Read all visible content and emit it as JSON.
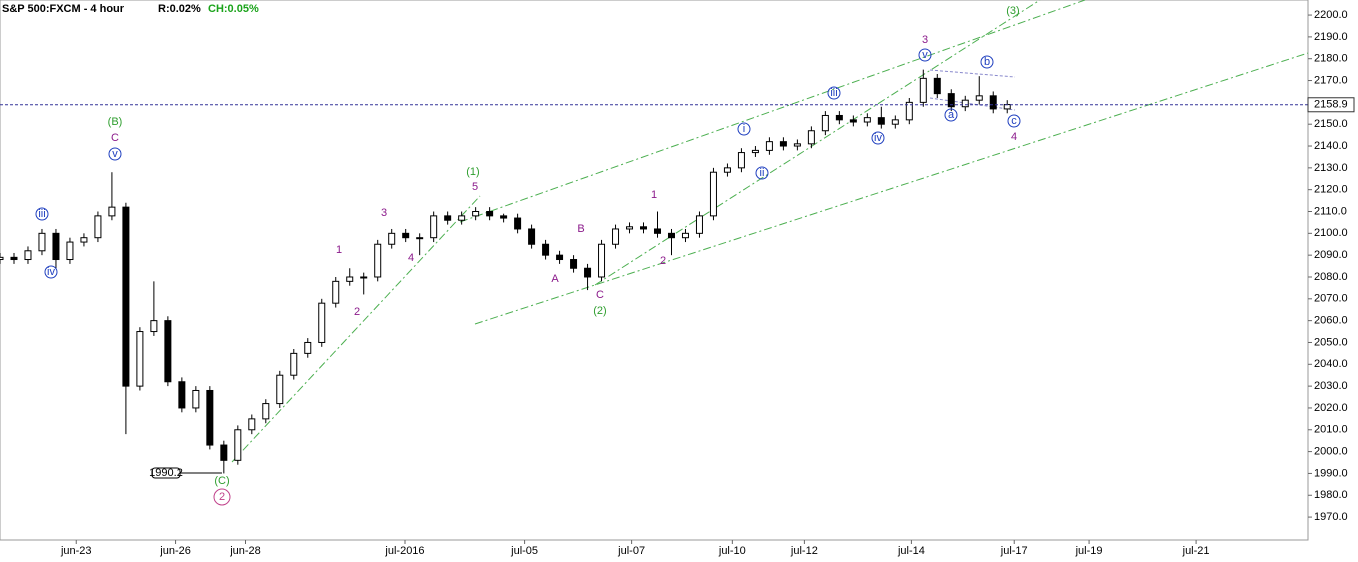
{
  "header": {
    "title": "S&P 500:FXCM - 4 hour",
    "range": "R:0.02%",
    "change": "CH:0.05%"
  },
  "chart_data": {
    "type": "candlestick",
    "candles": [
      [
        0,
        2088,
        2091,
        2086,
        2089
      ],
      [
        2,
        2089,
        2091,
        2086,
        2088
      ],
      [
        4,
        2088,
        2094,
        2086,
        2092
      ],
      [
        6,
        2092,
        2102,
        2090,
        2100
      ],
      [
        8,
        2100,
        2102,
        2084,
        2088
      ],
      [
        10,
        2088,
        2098,
        2086,
        2096
      ],
      [
        12,
        2096,
        2100,
        2094,
        2098
      ],
      [
        14,
        2098,
        2110,
        2096,
        2108
      ],
      [
        16,
        2108,
        2128,
        2106,
        2112
      ],
      [
        18,
        2112,
        2114,
        2008,
        2030
      ],
      [
        20,
        2030,
        2057,
        2028,
        2055
      ],
      [
        22,
        2055,
        2078,
        2053,
        2060
      ],
      [
        24,
        2060,
        2062,
        2030,
        2032
      ],
      [
        26,
        2032,
        2034,
        2018,
        2020
      ],
      [
        28,
        2020,
        2030,
        2018,
        2028
      ],
      [
        30,
        2028,
        2030,
        2001,
        2003
      ],
      [
        32,
        2003,
        2005,
        1990,
        1996
      ],
      [
        34,
        1996,
        2012,
        1994,
        2010
      ],
      [
        36,
        2010,
        2017,
        2008,
        2015
      ],
      [
        38,
        2015,
        2024,
        2013,
        2022
      ],
      [
        40,
        2022,
        2037,
        2020,
        2035
      ],
      [
        42,
        2035,
        2047,
        2033,
        2045
      ],
      [
        44,
        2045,
        2052,
        2043,
        2050
      ],
      [
        46,
        2050,
        2070,
        2048,
        2068
      ],
      [
        48,
        2068,
        2080,
        2066,
        2078
      ],
      [
        50,
        2078,
        2084,
        2076,
        2080
      ],
      [
        52,
        2080,
        2082,
        2072,
        2080
      ],
      [
        54,
        2080,
        2097,
        2078,
        2095
      ],
      [
        56,
        2095,
        2102,
        2093,
        2100
      ],
      [
        58,
        2100,
        2102,
        2096,
        2098
      ],
      [
        60,
        2098,
        2100,
        2090,
        2098
      ],
      [
        62,
        2098,
        2110,
        2096,
        2108
      ],
      [
        64,
        2108,
        2110,
        2104,
        2106
      ],
      [
        66,
        2106,
        2110,
        2104,
        2108
      ],
      [
        68,
        2108,
        2112,
        2106,
        2110
      ],
      [
        70,
        2110,
        2112,
        2106,
        2108
      ],
      [
        72,
        2108,
        2109,
        2105,
        2107
      ],
      [
        74,
        2107,
        2109,
        2100,
        2102
      ],
      [
        76,
        2102,
        2104,
        2093,
        2095
      ],
      [
        78,
        2095,
        2097,
        2088,
        2090
      ],
      [
        80,
        2090,
        2092,
        2086,
        2088
      ],
      [
        82,
        2088,
        2090,
        2082,
        2084
      ],
      [
        84,
        2084,
        2086,
        2074,
        2080
      ],
      [
        86,
        2080,
        2097,
        2078,
        2095
      ],
      [
        88,
        2095,
        2104,
        2093,
        2102
      ],
      [
        90,
        2102,
        2105,
        2100,
        2103
      ],
      [
        92,
        2103,
        2105,
        2100,
        2102
      ],
      [
        94,
        2102,
        2110,
        2098,
        2100
      ],
      [
        96,
        2100,
        2102,
        2090,
        2098
      ],
      [
        98,
        2098,
        2102,
        2096,
        2100
      ],
      [
        100,
        2100,
        2110,
        2098,
        2108
      ],
      [
        102,
        2108,
        2130,
        2106,
        2128
      ],
      [
        104,
        2128,
        2132,
        2126,
        2130
      ],
      [
        106,
        2130,
        2139,
        2128,
        2137
      ],
      [
        108,
        2137,
        2140,
        2135,
        2138
      ],
      [
        110,
        2138,
        2144,
        2136,
        2142
      ],
      [
        112,
        2142,
        2144,
        2138,
        2140
      ],
      [
        114,
        2140,
        2143,
        2138,
        2141
      ],
      [
        116,
        2141,
        2149,
        2139,
        2147
      ],
      [
        118,
        2147,
        2156,
        2145,
        2154
      ],
      [
        120,
        2154,
        2156,
        2150,
        2152
      ],
      [
        122,
        2152,
        2154,
        2149,
        2151
      ],
      [
        124,
        2151,
        2155,
        2149,
        2153
      ],
      [
        126,
        2153,
        2158,
        2148,
        2150
      ],
      [
        128,
        2150,
        2154,
        2148,
        2152
      ],
      [
        130,
        2152,
        2162,
        2150,
        2160
      ],
      [
        132,
        2160,
        2175,
        2158,
        2171
      ],
      [
        134,
        2171,
        2173,
        2162,
        2164
      ],
      [
        136,
        2164,
        2166,
        2156,
        2158
      ],
      [
        138,
        2158,
        2163,
        2156,
        2161
      ],
      [
        140,
        2161,
        2172,
        2159,
        2163
      ],
      [
        142,
        2163,
        2165,
        2155,
        2157
      ],
      [
        144,
        2157,
        2161,
        2155,
        2159
      ]
    ],
    "xlim": [
      0,
      187
    ],
    "xticks": [
      {
        "value": 10.9,
        "label": "jun-23"
      },
      {
        "value": 25.1,
        "label": "jun-26"
      },
      {
        "value": 35.1,
        "label": "jun-28"
      },
      {
        "value": 57.9,
        "label": "jul-2016"
      },
      {
        "value": 75,
        "label": "jul-05"
      },
      {
        "value": 90.3,
        "label": "jul-07"
      },
      {
        "value": 104.7,
        "label": "jul-10"
      },
      {
        "value": 115,
        "label": "jul-12"
      },
      {
        "value": 130.3,
        "label": "jul-14"
      },
      {
        "value": 145,
        "label": "jul-17"
      },
      {
        "value": 155.7,
        "label": "jul-19"
      },
      {
        "value": 171,
        "label": "jul-21"
      }
    ],
    "ylim": [
      1959.5,
      2206.9
    ],
    "yticks": [
      {
        "value": 1970,
        "label": "1970.0"
      },
      {
        "value": 1980,
        "label": "1980.0"
      },
      {
        "value": 1990,
        "label": "1990.0"
      },
      {
        "value": 2000,
        "label": "2000.0"
      },
      {
        "value": 2010,
        "label": "2010.0"
      },
      {
        "value": 2020,
        "label": "2020.0"
      },
      {
        "value": 2030,
        "label": "2030.0"
      },
      {
        "value": 2040,
        "label": "2040.0"
      },
      {
        "value": 2050,
        "label": "2050.0"
      },
      {
        "value": 2060,
        "label": "2060.0"
      },
      {
        "value": 2070,
        "label": "2070.0"
      },
      {
        "value": 2080,
        "label": "2080.0"
      },
      {
        "value": 2090,
        "label": "2090.0"
      },
      {
        "value": 2100,
        "label": "2100.0"
      },
      {
        "value": 2110,
        "label": "2110.0"
      },
      {
        "value": 2120,
        "label": "2120.0"
      },
      {
        "value": 2130,
        "label": "2130.0"
      },
      {
        "value": 2140,
        "label": "2140.0"
      },
      {
        "value": 2150,
        "label": "2150.0"
      },
      {
        "value": 2160,
        "label": "2160.0"
      },
      {
        "value": 2170,
        "label": "2170.0"
      },
      {
        "value": 2180,
        "label": "2180.0"
      },
      {
        "value": 2190,
        "label": "2190.0"
      },
      {
        "value": 2200,
        "label": "2200.0"
      }
    ],
    "last_price": 2158.9,
    "low_marker": {
      "value": 1990.2,
      "label": "1990.2"
    },
    "annotations": [
      "(B)",
      "C",
      "v",
      "iii",
      "iv",
      "(C)",
      "2",
      "1",
      "2",
      "3",
      "4",
      "(1)",
      "5",
      "A",
      "B",
      "C",
      "(2)",
      "1",
      "2",
      "i",
      "ii",
      "iii",
      "iv",
      "3",
      "v",
      "(3)",
      "b",
      "a",
      "c",
      "4"
    ]
  }
}
